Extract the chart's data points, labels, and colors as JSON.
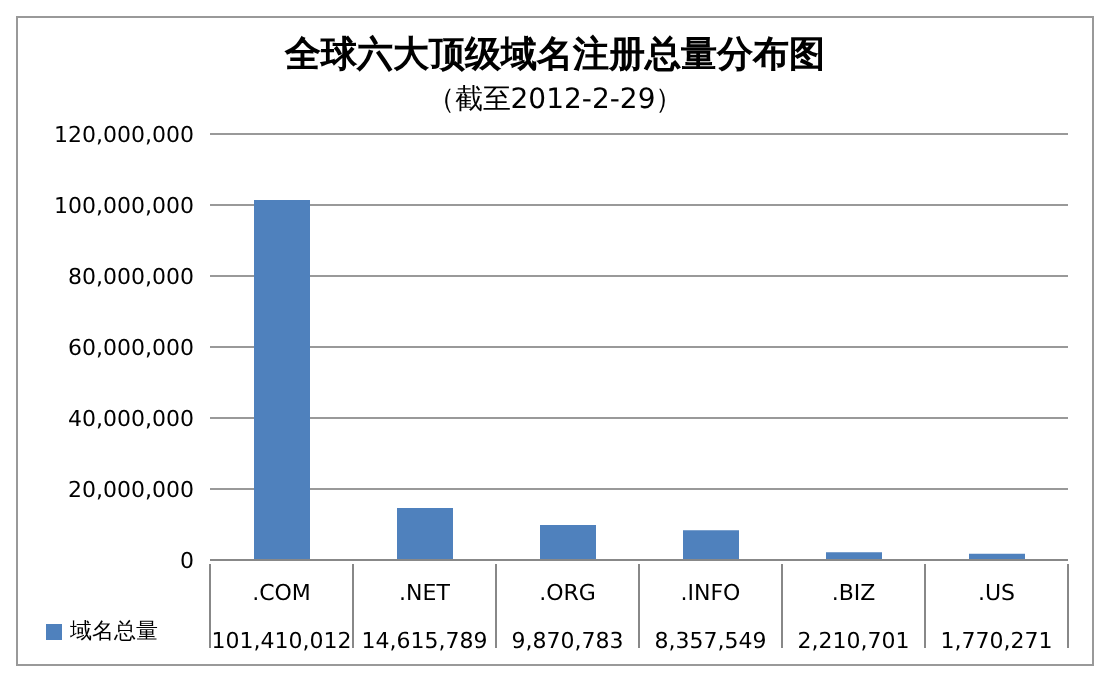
{
  "chart_data": {
    "type": "bar",
    "title": "全球六大顶级域名注册总量分布图",
    "subtitle": "（截至2012-2-29）",
    "categories": [
      ".COM",
      ".NET",
      ".ORG",
      ".INFO",
      ".BIZ",
      ".US"
    ],
    "series": [
      {
        "name": "域名总量",
        "color": "#4f81bd",
        "values": [
          101410012,
          14615789,
          9870783,
          8357549,
          2210701,
          1770271
        ],
        "value_labels": [
          "101,410,012",
          "14,615,789",
          "9,870,783",
          "8,357,549",
          "2,210,701",
          "1,770,271"
        ]
      }
    ],
    "ylim": [
      0,
      120000000
    ],
    "yticks": [
      0,
      {
        "value": 20000000,
        "label": "20,000,000"
      },
      {
        "value": 40000000,
        "label": "40,000,000"
      },
      {
        "value": 60000000,
        "label": "60,000,000"
      },
      {
        "value": 80000000,
        "label": "80,000,000"
      },
      {
        "value": 100000000,
        "label": "100,000,000"
      },
      {
        "value": 120000000,
        "label": "120,000,000"
      }
    ],
    "grid": "y",
    "legend": "bottom"
  }
}
